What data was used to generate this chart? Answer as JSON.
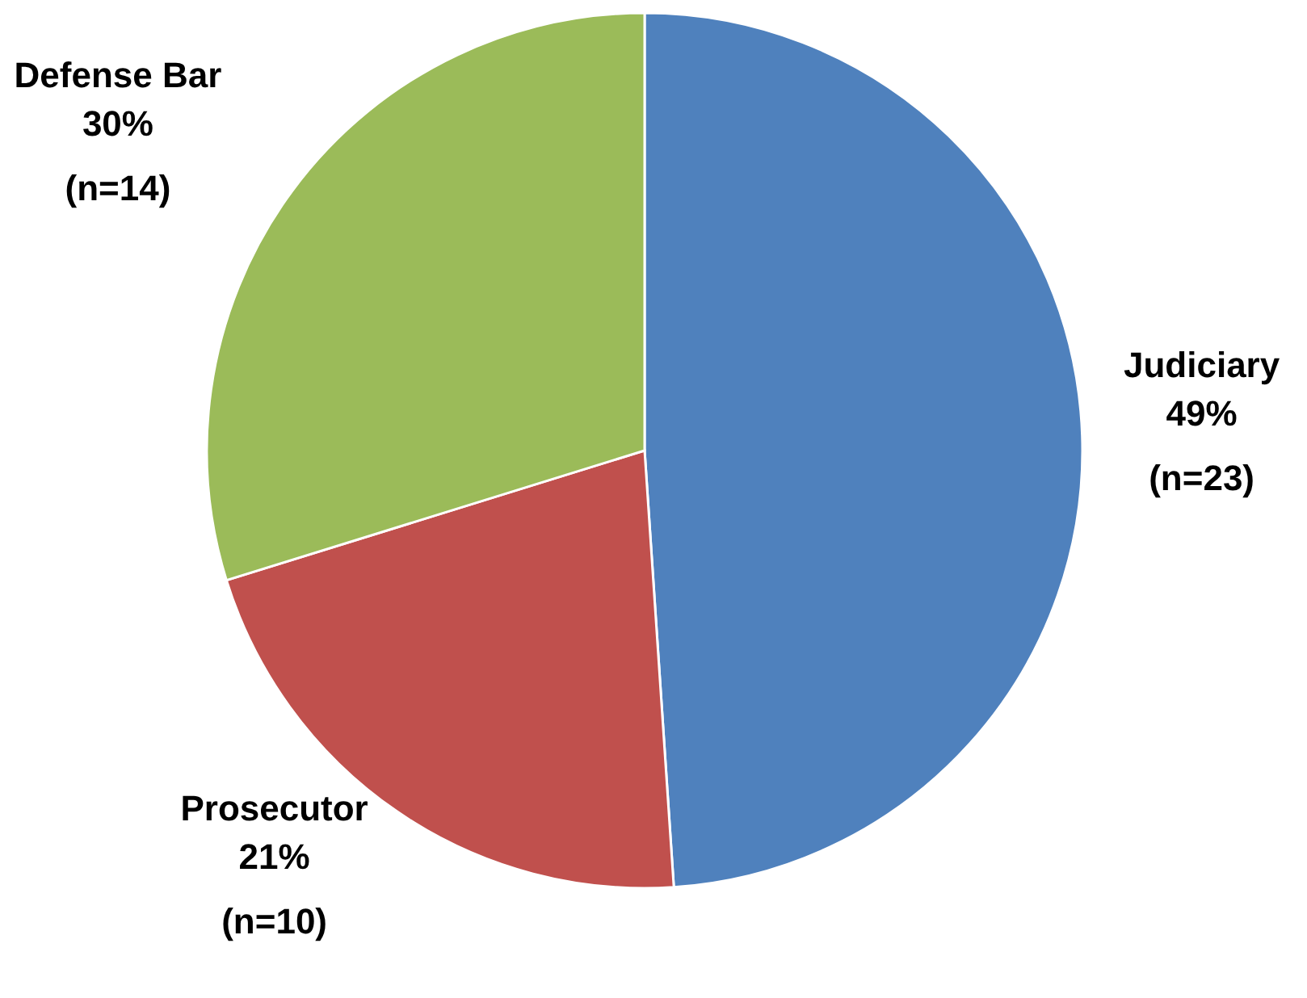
{
  "chart_data": {
    "type": "pie",
    "categories": [
      "Judiciary",
      "Prosecutor",
      "Defense Bar"
    ],
    "values": [
      23,
      10,
      14
    ],
    "colors": [
      "#4f81bd",
      "#c0504d",
      "#9bbb59"
    ],
    "value_labels": [
      "49%\n(n=23)",
      "21%\n(n=10)",
      "30%\n(n=14)"
    ]
  }
}
